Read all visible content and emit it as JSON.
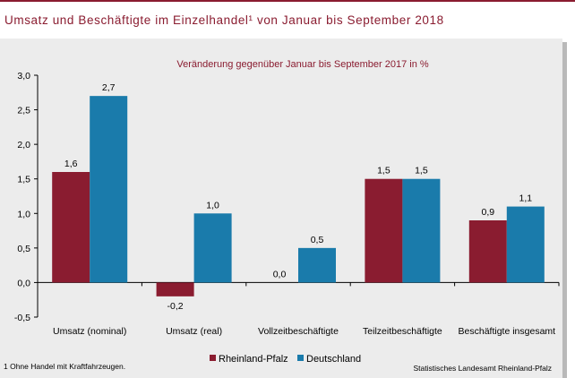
{
  "title": "Umsatz und Beschäftigte im Einzelhandel¹ von Januar bis September 2018",
  "footnote": "1 Ohne Handel mit Kraftfahrzeugen.",
  "source": "Statistisches Landesamt Rheinland-Pfalz",
  "colors": {
    "accent": "#8a1c30",
    "rheinland_pfalz": "#8a1c30",
    "deutschland": "#1a7bab",
    "panel": "#ececec"
  },
  "chart_data": {
    "type": "bar",
    "subtitle": "Veränderung gegenüber Januar bis September 2017 in %",
    "categories": [
      "Umsatz (nominal)",
      "Umsatz (real)",
      "Vollzeitbeschäftigte",
      "Teilzeitbeschäftigte",
      "Beschäftigte insgesamt"
    ],
    "series": [
      {
        "name": "Rheinland-Pfalz",
        "values": [
          1.6,
          -0.2,
          0.0,
          1.5,
          0.9
        ],
        "labels": [
          "1,6",
          "-0,2",
          "0,0",
          "1,5",
          "0,9"
        ],
        "color": "#8a1c30"
      },
      {
        "name": "Deutschland",
        "values": [
          2.7,
          1.0,
          0.5,
          1.5,
          1.1
        ],
        "labels": [
          "2,7",
          "1,0",
          "0,5",
          "1,5",
          "1,1"
        ],
        "color": "#1a7bab"
      }
    ],
    "ylim": [
      -0.5,
      3.0
    ],
    "yticks": [
      -0.5,
      0.0,
      0.5,
      1.0,
      1.5,
      2.0,
      2.5,
      3.0
    ],
    "ytick_labels": [
      "-0,5",
      "0,0",
      "0,5",
      "1,0",
      "1,5",
      "2,0",
      "2,5",
      "3,0"
    ],
    "grid": false,
    "legend_position": "bottom-center"
  }
}
